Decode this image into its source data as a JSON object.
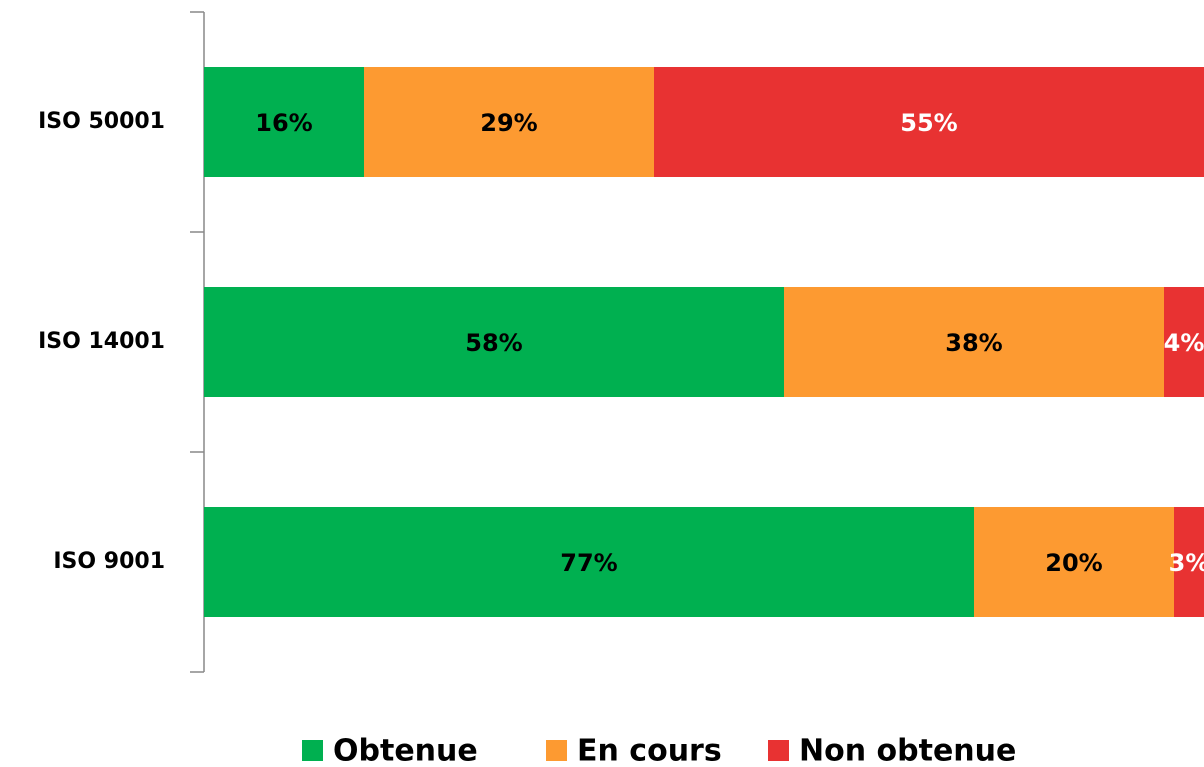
{
  "chart_data": {
    "type": "stacked_bar_horizontal",
    "categories": [
      "ISO 50001",
      "ISO 14001",
      "ISO 9001"
    ],
    "series": [
      {
        "name": "Obtenue",
        "color": "#00b050",
        "label_color": "#000000",
        "values": [
          16,
          58,
          77
        ],
        "value_labels": [
          "16%",
          "58%",
          "77%"
        ]
      },
      {
        "name": "En cours",
        "color": "#fd9a31",
        "label_color": "#000000",
        "values": [
          29,
          38,
          20
        ],
        "value_labels": [
          "29%",
          "38%",
          "20%"
        ]
      },
      {
        "name": "Non obtenue",
        "color": "#e83232",
        "label_color": "#ffffff",
        "values": [
          55,
          4,
          3
        ],
        "value_labels": [
          "55%",
          "4%",
          "3%"
        ]
      }
    ],
    "xlim": [
      0,
      100
    ],
    "legend": "bottom"
  }
}
